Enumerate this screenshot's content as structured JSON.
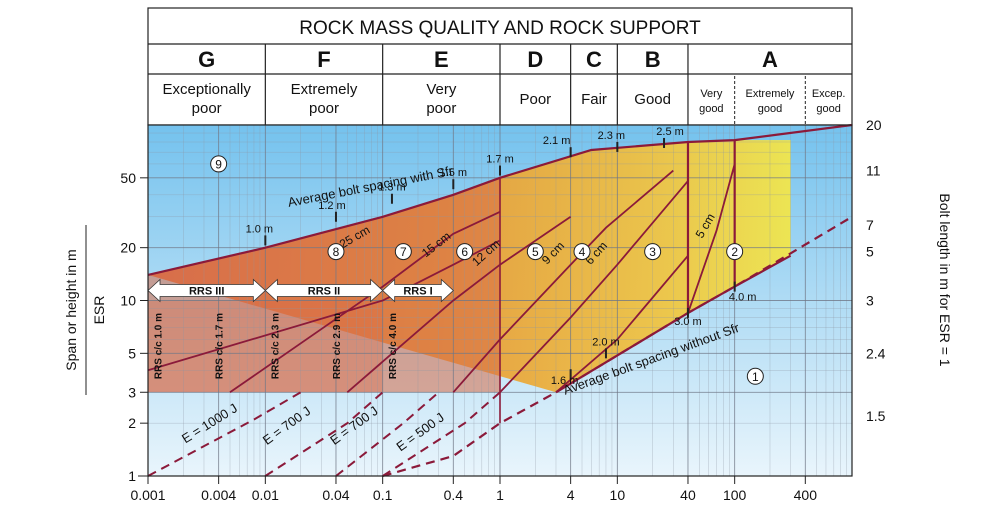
{
  "chart_data": {
    "type": "diagram",
    "title": "ROCK MASS QUALITY AND ROCK SUPPORT",
    "classes": [
      {
        "letter": "G",
        "quality": "Exceptionally poor"
      },
      {
        "letter": "F",
        "quality": "Extremely poor"
      },
      {
        "letter": "E",
        "quality": "Very poor"
      },
      {
        "letter": "D",
        "quality": "Poor"
      },
      {
        "letter": "C",
        "quality": "Fair"
      },
      {
        "letter": "B",
        "quality": "Good"
      },
      {
        "letter": "A",
        "quality": [
          "Very good",
          "Extremely good",
          "Excep. good"
        ]
      }
    ],
    "x_scale": "log",
    "xlim": [
      0.001,
      1000
    ],
    "x_ticks": [
      "0.001",
      "0.004",
      "0.01",
      "0.04",
      "0.1",
      "0.4",
      "1",
      "4",
      "10",
      "40",
      "100",
      "400"
    ],
    "y_scale": "log",
    "ylim": [
      1,
      100
    ],
    "ylabel": "Span or height in m",
    "ylabel_denominator": "ESR",
    "y_ticks": [
      "1",
      "2",
      "3",
      "5",
      "10",
      "20",
      "50"
    ],
    "right_axis_label": "Bolt length in m for ESR = 1",
    "right_ticks": [
      "20",
      "11",
      "7",
      "5",
      "3",
      "2.4",
      "1.5"
    ],
    "support_categories": [
      "1",
      "2",
      "3",
      "4",
      "5",
      "6",
      "7",
      "8",
      "9"
    ],
    "spacing_labels_with_sfr": [
      "1.0 m",
      "1.2 m",
      "1.3 m",
      "1.5 m",
      "1.7 m",
      "2.1 m",
      "2.3 m",
      "2.5 m"
    ],
    "spacing_labels_without_sfr": [
      "1.6 m",
      "2.0 m",
      "3.0 m",
      "4.0 m"
    ],
    "curve_labels": {
      "with_sfr": "Average bolt spacing with Sfr",
      "without_sfr": "Average bolt spacing without Sfr"
    },
    "sfr_thickness": [
      "25 cm",
      "15 cm",
      "12 cm",
      "9 cm",
      "6 cm",
      "5 cm"
    ],
    "rrs_bands": [
      "RRS III",
      "RRS II",
      "RRS I"
    ],
    "rrs_spacing": [
      "RRS c/c 1.0 m",
      "RRS c/c 1.7 m",
      "RRS c/c 2.3 m",
      "RRS c/c 2.9 m",
      "RRS c/c 4.0 m"
    ],
    "energy": [
      "E = 1000 J",
      "E = 700 J",
      "E = 700 J",
      "E = 500 J"
    ],
    "colors": {
      "line": "#8b1a3a",
      "blue": "#74c2ee",
      "yellow": "#f1e64b",
      "orange": "#e79a38",
      "red": "#d96b47"
    }
  }
}
